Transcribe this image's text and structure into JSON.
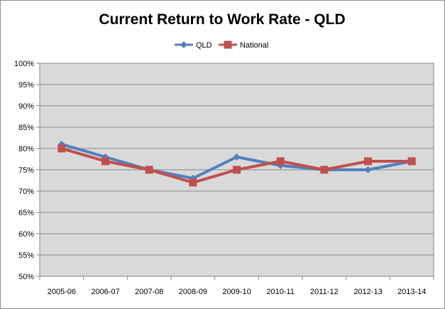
{
  "chart_data": {
    "type": "line",
    "title": "Current Return to Work Rate - QLD",
    "categories": [
      "2005-06",
      "2006-07",
      "2007-08",
      "2008-09",
      "2009-10",
      "2010-11",
      "2011-12",
      "2012-13",
      "2013-14"
    ],
    "series": [
      {
        "name": "QLD",
        "color": "#4f81bd",
        "marker": "diamond",
        "values": [
          81,
          78,
          75,
          73,
          78,
          76,
          75,
          75,
          77
        ]
      },
      {
        "name": "National",
        "color": "#c0504d",
        "marker": "square",
        "values": [
          80,
          77,
          75,
          72,
          75,
          77,
          75,
          77,
          77
        ]
      }
    ],
    "ylim": [
      50,
      100
    ],
    "ytick_step": 5,
    "ytick_format": "percent",
    "xlabel": "",
    "ylabel": "",
    "grid": "horizontal",
    "plot_background": "#d9d9d9",
    "legend_position": "top-center"
  }
}
